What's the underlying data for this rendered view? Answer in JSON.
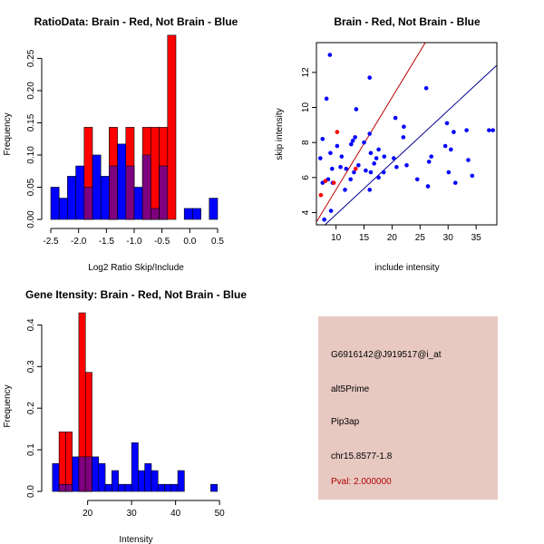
{
  "colors": {
    "brain": "#ff0000",
    "not_brain": "#0000ff",
    "overlap": "#7f007f",
    "panel_bg": "#e8c9c2",
    "pval": "#b00000"
  },
  "chart_data": [
    {
      "type": "histogram",
      "title": "RatioData: Brain - Red, Not Brain - Blue",
      "xlabel": "Log2 Ratio Skip/Include",
      "ylabel": "Frequency",
      "xlim": [
        -2.5,
        0.5
      ],
      "ylim": [
        0,
        0.29
      ],
      "xticks": [
        "-2.5",
        "-2.0",
        "-1.5",
        "-1.0",
        "-0.5",
        "0.0",
        "0.5"
      ],
      "yticks": [
        "0.00",
        "0.05",
        "0.10",
        "0.15",
        "0.20",
        "0.25"
      ],
      "bin_start": -2.5,
      "bin_width": 0.15,
      "series": [
        {
          "name": "Not Brain",
          "color": "blue",
          "values": [
            0.05,
            0.033,
            0.067,
            0.083,
            0.05,
            0.1,
            0.067,
            0.083,
            0.117,
            0.083,
            0.05,
            0.1,
            0.017,
            0.083,
            0,
            0,
            0.017,
            0.017,
            0,
            0.033
          ]
        },
        {
          "name": "Brain",
          "color": "red",
          "values": [
            0,
            0,
            0,
            0,
            0.143,
            0,
            0,
            0.143,
            0,
            0.143,
            0,
            0.143,
            0.143,
            0.143,
            0.286,
            0,
            0,
            0,
            0,
            0
          ]
        }
      ]
    },
    {
      "type": "scatter",
      "title": "Brain - Red, Not Brain - Blue",
      "xlabel": "include intensity",
      "ylabel": "skip intensity",
      "xlim": [
        6.5,
        38.7
      ],
      "ylim": [
        3.3,
        13.7
      ],
      "xticks": [
        10,
        15,
        20,
        25,
        30,
        35
      ],
      "yticks": [
        4,
        6,
        8,
        10,
        12
      ],
      "lines": [
        {
          "name": "fit-red",
          "color": "red",
          "x1": 6,
          "y1": 3.2,
          "x2": 26.5,
          "y2": 14
        },
        {
          "name": "diagonal-blue",
          "color": "blue",
          "x1": 7,
          "y1": 3,
          "x2": 39,
          "y2": 12.5
        }
      ],
      "series": [
        {
          "name": "Not Brain",
          "color": "blue",
          "points": [
            [
              8.9,
              13.0
            ],
            [
              16.0,
              11.7
            ],
            [
              26.1,
              11.1
            ],
            [
              8.3,
              10.5
            ],
            [
              13.6,
              9.9
            ],
            [
              20.6,
              9.4
            ],
            [
              29.8,
              9.1
            ],
            [
              22.1,
              8.9
            ],
            [
              33.3,
              8.7
            ],
            [
              37.3,
              8.7
            ],
            [
              38.0,
              8.7
            ],
            [
              13.4,
              8.3
            ],
            [
              16.0,
              8.5
            ],
            [
              7.6,
              8.2
            ],
            [
              13.0,
              8.1
            ],
            [
              22.0,
              8.3
            ],
            [
              12.7,
              7.9
            ],
            [
              15.0,
              8.0
            ],
            [
              17.6,
              7.6
            ],
            [
              10.2,
              7.8
            ],
            [
              9.0,
              7.4
            ],
            [
              16.2,
              7.4
            ],
            [
              17.2,
              7.1
            ],
            [
              11.0,
              7.2
            ],
            [
              7.2,
              7.1
            ],
            [
              18.6,
              7.2
            ],
            [
              20.3,
              7.1
            ],
            [
              27.0,
              7.2
            ],
            [
              29.5,
              7.8
            ],
            [
              30.5,
              7.6
            ],
            [
              31.0,
              8.6
            ],
            [
              26.6,
              6.9
            ],
            [
              22.6,
              6.7
            ],
            [
              33.6,
              7.0
            ],
            [
              14.0,
              6.7
            ],
            [
              20.8,
              6.6
            ],
            [
              9.3,
              6.5
            ],
            [
              11.8,
              6.5
            ],
            [
              15.3,
              6.4
            ],
            [
              16.2,
              6.3
            ],
            [
              13.2,
              6.3
            ],
            [
              18.5,
              6.3
            ],
            [
              12.6,
              5.9
            ],
            [
              10.8,
              6.6
            ],
            [
              17.6,
              6.0
            ],
            [
              34.3,
              6.1
            ],
            [
              24.5,
              5.9
            ],
            [
              30.1,
              6.3
            ],
            [
              31.3,
              5.7
            ],
            [
              9.4,
              5.7
            ],
            [
              16.0,
              5.3
            ],
            [
              26.4,
              5.5
            ],
            [
              11.6,
              5.3
            ],
            [
              7.9,
              3.6
            ],
            [
              9.1,
              4.1
            ],
            [
              7.6,
              5.7
            ],
            [
              8.6,
              5.9
            ],
            [
              16.8,
              6.8
            ]
          ]
        },
        {
          "name": "Brain",
          "color": "red",
          "points": [
            [
              10.2,
              8.6
            ],
            [
              13.5,
              6.5
            ],
            [
              8.1,
              5.8
            ],
            [
              9.6,
              5.7
            ],
            [
              7.3,
              5.0
            ]
          ]
        }
      ]
    },
    {
      "type": "histogram",
      "title": "Gene Itensity: Brain - Red, Not Brain - Blue",
      "xlabel": "Intensity",
      "ylabel": "Frequency",
      "xlim": [
        11,
        51
      ],
      "ylim": [
        0,
        0.44
      ],
      "xticks": [
        "20",
        "30",
        "40",
        "50"
      ],
      "yticks": [
        "0.0",
        "0.1",
        "0.2",
        "0.3",
        "0.4"
      ],
      "bin_start": 12,
      "bin_width": 1.5,
      "series": [
        {
          "name": "Not Brain",
          "color": "blue",
          "values": [
            0.067,
            0.017,
            0.017,
            0.083,
            0.083,
            0.083,
            0.083,
            0.067,
            0.017,
            0.05,
            0.017,
            0.017,
            0.117,
            0.05,
            0.067,
            0.05,
            0.017,
            0.017,
            0.017,
            0.05,
            0,
            0,
            0,
            0,
            0.017
          ]
        },
        {
          "name": "Brain",
          "color": "red",
          "values": [
            0,
            0.143,
            0.143,
            0,
            0.429,
            0.286,
            0,
            0,
            0,
            0,
            0,
            0,
            0,
            0,
            0,
            0,
            0,
            0,
            0,
            0,
            0,
            0,
            0,
            0,
            0
          ]
        }
      ]
    }
  ],
  "info_panel": {
    "probe_id": "G6916142@J919517@i_at",
    "event_type": "alt5Prime",
    "gene": "Pip3ap",
    "location": "chr15.8577-1.8",
    "pval": "Pval: 2.000000"
  }
}
